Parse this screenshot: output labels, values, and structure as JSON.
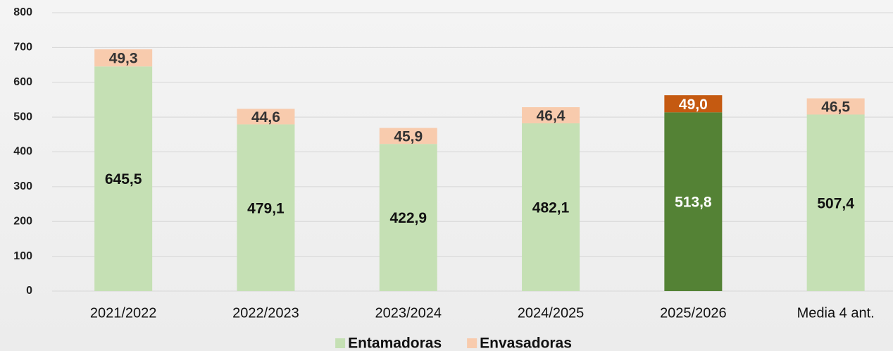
{
  "chart_data": {
    "type": "stacked_bar",
    "categories": [
      "2021/2022",
      "2022/2023",
      "2023/2024",
      "2024/2025",
      "2025/2026",
      "Media 4 ant."
    ],
    "series": [
      {
        "name": "Entamadoras",
        "color": "#c5e0b4",
        "colors": [
          "#c5e0b4",
          "#c5e0b4",
          "#c5e0b4",
          "#c5e0b4",
          "#548235",
          "#c5e0b4"
        ],
        "values": [
          645.5,
          479.1,
          422.9,
          482.1,
          513.8,
          507.4
        ],
        "value_labels": [
          "645,5",
          "479,1",
          "422,9",
          "482,1",
          "513,8",
          "507,4"
        ]
      },
      {
        "name": "Envasadoras",
        "color": "#f8cbad",
        "colors": [
          "#f8cbad",
          "#f8cbad",
          "#f8cbad",
          "#f8cbad",
          "#c55a11",
          "#f8cbad"
        ],
        "values": [
          49.3,
          44.6,
          45.9,
          46.4,
          49.0,
          46.5
        ],
        "value_labels": [
          "49,3",
          "44,6",
          "45,9",
          "46,4",
          "49,0",
          "46,5"
        ]
      }
    ],
    "ylim": [
      0,
      800
    ],
    "yticks": [
      0,
      100,
      200,
      300,
      400,
      500,
      600,
      700,
      800
    ],
    "grid": true,
    "legend": "bottom"
  }
}
